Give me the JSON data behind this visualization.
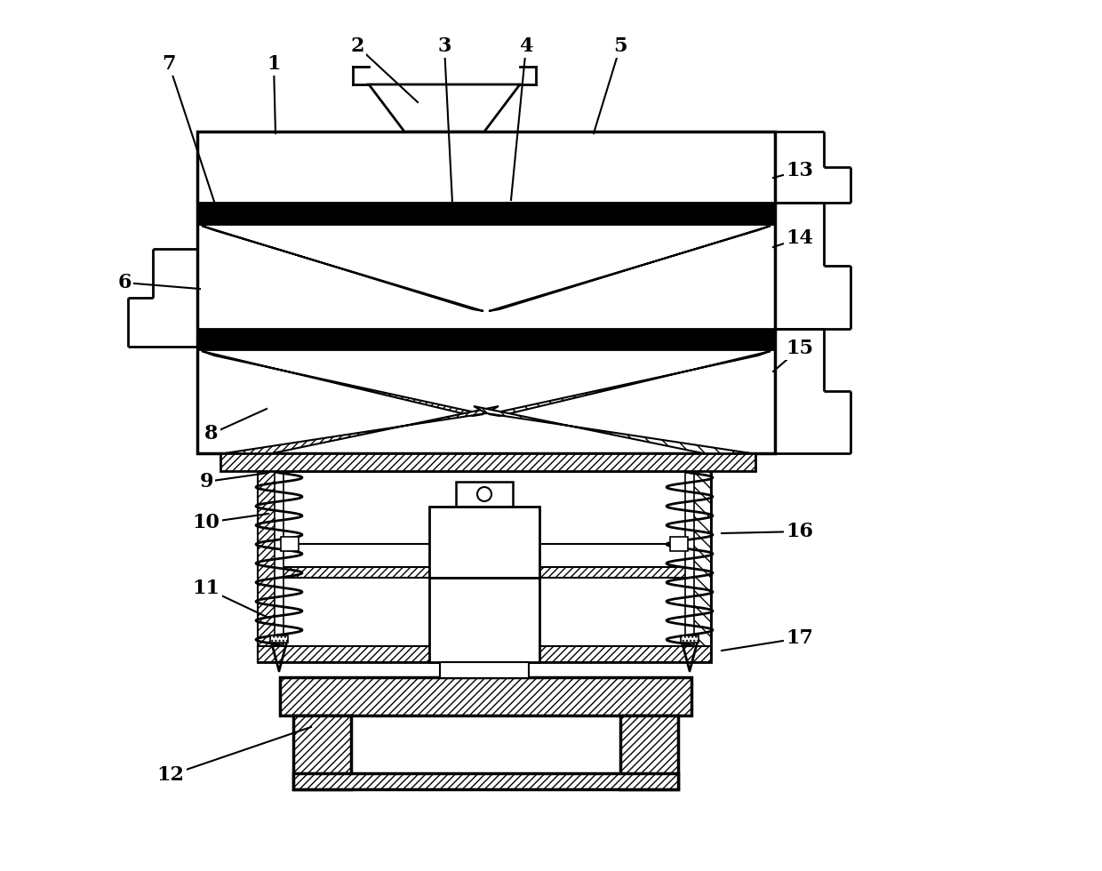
{
  "bg_color": "#ffffff",
  "line_color": "#000000",
  "figsize": [
    12.4,
    9.8
  ],
  "dpi": 100,
  "labels_data": [
    [
      "7",
      190,
      72,
      248,
      248
    ],
    [
      "1",
      308,
      72,
      310,
      150
    ],
    [
      "2",
      402,
      52,
      470,
      115
    ],
    [
      "3",
      500,
      52,
      510,
      248
    ],
    [
      "4",
      592,
      52,
      575,
      225
    ],
    [
      "5",
      698,
      52,
      668,
      150
    ],
    [
      "6",
      140,
      318,
      225,
      325
    ],
    [
      "8",
      238,
      488,
      300,
      460
    ],
    [
      "9",
      232,
      542,
      302,
      532
    ],
    [
      "10",
      232,
      588,
      302,
      578
    ],
    [
      "11",
      232,
      662,
      302,
      695
    ],
    [
      "12",
      192,
      872,
      350,
      818
    ],
    [
      "13",
      900,
      192,
      870,
      200
    ],
    [
      "14",
      900,
      268,
      870,
      278
    ],
    [
      "15",
      900,
      392,
      870,
      418
    ],
    [
      "16",
      900,
      598,
      812,
      600
    ],
    [
      "17",
      900,
      718,
      812,
      732
    ]
  ]
}
